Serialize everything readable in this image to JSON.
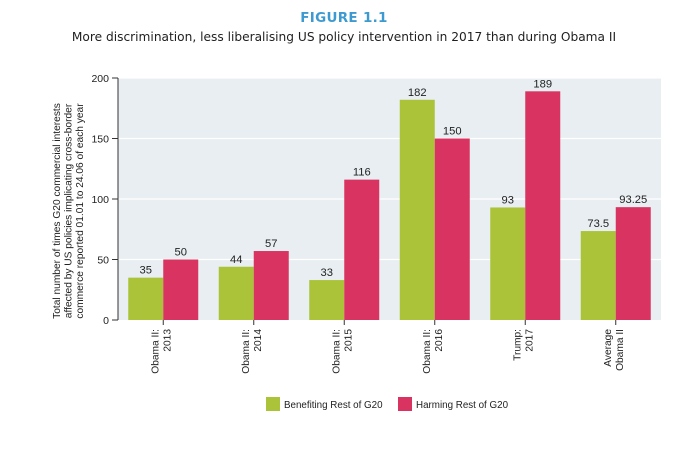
{
  "figure_label": "FIGURE 1.1",
  "chart_data": {
    "type": "bar",
    "title": "More discrimination, less liberalising US policy intervention in 2017 than during Obama II",
    "ylabel_lines": [
      "Total number of times G20 commercial interests",
      "affected by US policies implicating cross-border",
      "commerce reported 01.01 to 24.06 of each year"
    ],
    "ylim": [
      0,
      200
    ],
    "yticks": [
      0,
      50,
      100,
      150,
      200
    ],
    "grid": true,
    "legend_position": "bottom",
    "categories": [
      [
        "Obama II:",
        "2013"
      ],
      [
        "Obama II:",
        "2014"
      ],
      [
        "Obama II:",
        "2015"
      ],
      [
        "Obama II:",
        "2016"
      ],
      [
        "Trump:",
        "2017"
      ],
      [
        "Average",
        "Obama II"
      ]
    ],
    "series": [
      {
        "name": "Benefiting Rest of G20",
        "color": "#aac338",
        "values": [
          35,
          44,
          33,
          182,
          93,
          73.5
        ],
        "labels": [
          "35",
          "44",
          "33",
          "182",
          "93",
          "73.5"
        ]
      },
      {
        "name": "Harming Rest of G20",
        "color": "#d93461",
        "values": [
          50,
          57,
          116,
          150,
          189,
          93.25
        ],
        "labels": [
          "50",
          "57",
          "116",
          "150",
          "189",
          "93.25"
        ]
      }
    ]
  }
}
